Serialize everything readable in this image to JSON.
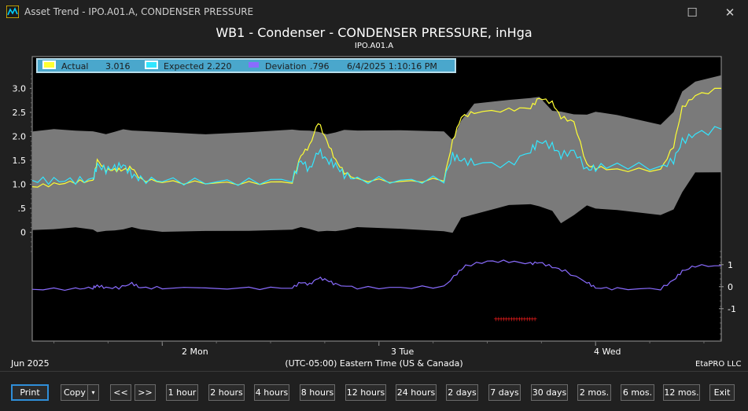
{
  "window": {
    "title": "Asset Trend - IPO.A01.A, CONDENSER PRESSURE",
    "maximize_glyph": "☐",
    "close_glyph": "✕"
  },
  "chart": {
    "title": "WB1 - Condenser - CONDENSER PRESSURE, inHga",
    "subtitle": "IPO.A01.A"
  },
  "legend": {
    "actual_label": "Actual",
    "actual_value": "3.016",
    "expected_label": "Expected",
    "expected_value": "2.220",
    "deviation_label": "Deviation",
    "deviation_value": ".796",
    "timestamp": "6/4/2025 1:10:16 PM"
  },
  "xaxis": {
    "month": "Jun 2025",
    "timezone": "(UTC-05:00) Eastern Time (US & Canada)",
    "brand": "EtaPRO LLC",
    "ticks": [
      "2 Mon",
      "3 Tue",
      "4 Wed"
    ]
  },
  "colors": {
    "actual": "#ffff33",
    "expected": "#33e6ff",
    "deviation": "#8a6cff",
    "band": "#7a7a7a",
    "alarm": "#ff1e1e"
  },
  "chart_data": {
    "type": "line",
    "x_unit": "days since 6/1/2025 00:00 (Jun 2025)",
    "x_range": [
      1.4,
      4.58
    ],
    "upper_panel": {
      "ylabel": "",
      "ylim": [
        -0.4,
        3.4
      ],
      "yticks": [
        "3.0",
        "2.5",
        "2.0",
        "1.5",
        "1.0",
        ".5",
        "0"
      ],
      "series": [
        {
          "name": "Actual",
          "x": [
            1.4,
            1.5,
            1.6,
            1.68,
            1.7,
            1.74,
            1.78,
            1.82,
            1.86,
            1.9,
            2.0,
            2.2,
            2.4,
            2.6,
            2.64,
            2.68,
            2.72,
            2.76,
            2.8,
            2.84,
            2.9,
            3.1,
            3.3,
            3.34,
            3.38,
            3.44,
            3.6,
            3.7,
            3.74,
            3.8,
            3.84,
            3.9,
            3.96,
            4.0,
            4.1,
            4.3,
            4.36,
            4.4,
            4.46,
            4.58
          ],
          "values": [
            0.95,
            1.0,
            1.05,
            1.07,
            1.5,
            1.3,
            1.3,
            1.3,
            1.35,
            1.1,
            1.05,
            1.03,
            1.02,
            1.05,
            1.6,
            1.8,
            2.3,
            1.9,
            1.5,
            1.25,
            1.1,
            1.05,
            1.1,
            1.9,
            2.4,
            2.5,
            2.55,
            2.6,
            2.8,
            2.7,
            2.4,
            2.3,
            1.4,
            1.35,
            1.3,
            1.3,
            1.8,
            2.6,
            2.85,
            3.0
          ]
        },
        {
          "name": "Expected",
          "x": [
            1.4,
            1.5,
            1.6,
            1.68,
            1.7,
            1.74,
            1.78,
            1.82,
            1.86,
            1.9,
            2.0,
            2.2,
            2.4,
            2.6,
            2.64,
            2.68,
            2.72,
            2.76,
            2.8,
            2.84,
            2.9,
            3.1,
            3.3,
            3.34,
            3.38,
            3.44,
            3.6,
            3.7,
            3.74,
            3.8,
            3.84,
            3.9,
            3.96,
            4.0,
            4.1,
            4.3,
            4.36,
            4.4,
            4.46,
            4.58
          ],
          "values": [
            1.08,
            1.08,
            1.08,
            1.1,
            1.4,
            1.3,
            1.35,
            1.4,
            1.2,
            1.1,
            1.08,
            1.05,
            1.05,
            1.1,
            1.5,
            1.3,
            1.7,
            1.5,
            1.4,
            1.2,
            1.1,
            1.07,
            1.1,
            1.6,
            1.5,
            1.45,
            1.4,
            1.7,
            1.9,
            1.8,
            1.6,
            1.7,
            1.3,
            1.35,
            1.4,
            1.35,
            1.5,
            1.9,
            2.05,
            2.15
          ]
        }
      ],
      "band_label": "Expected band",
      "band_low": [
        0.05,
        0.05,
        0.05,
        0.05,
        0.05,
        0.05,
        0.05,
        0.05,
        0.05,
        0.05,
        0.05,
        0.05,
        0.05,
        0.05,
        0.05,
        0.05,
        0.05,
        0.05,
        0.05,
        0.05,
        0.05,
        0.05,
        0.05,
        0.05,
        0.4,
        0.4,
        0.4,
        0.5,
        0.6,
        0.5,
        0.3,
        0.4,
        0.4,
        0.4,
        0.5,
        0.4,
        0.6,
        0.9,
        1.1,
        1.15
      ],
      "band_high": [
        2.1,
        2.1,
        2.1,
        2.1,
        2.1,
        2.1,
        2.1,
        2.1,
        2.1,
        2.1,
        2.1,
        2.1,
        2.1,
        2.1,
        2.1,
        2.1,
        2.1,
        2.1,
        2.1,
        2.1,
        2.1,
        2.1,
        2.1,
        2.1,
        2.4,
        2.6,
        2.7,
        2.7,
        2.8,
        2.7,
        2.6,
        2.4,
        2.4,
        2.4,
        2.4,
        2.4,
        2.6,
        2.9,
        3.1,
        3.15
      ]
    },
    "lower_panel": {
      "ylim": [
        -2.4,
        1.6
      ],
      "yticks": [
        "1",
        "0",
        "-1"
      ],
      "series": [
        {
          "name": "Deviation",
          "x": [
            1.4,
            1.6,
            1.68,
            1.7,
            1.74,
            1.8,
            1.86,
            1.9,
            2.0,
            2.4,
            2.6,
            2.64,
            2.68,
            2.72,
            2.76,
            2.8,
            2.9,
            3.1,
            3.3,
            3.36,
            3.4,
            3.5,
            3.6,
            3.7,
            3.74,
            3.8,
            3.86,
            3.96,
            4.0,
            4.1,
            4.3,
            4.36,
            4.4,
            4.46,
            4.58
          ],
          "values": [
            -0.12,
            -0.1,
            -0.05,
            0.05,
            -0.05,
            -0.05,
            0.15,
            -0.05,
            -0.05,
            -0.08,
            -0.05,
            0.2,
            0.1,
            0.4,
            0.3,
            0.1,
            -0.05,
            -0.05,
            0.0,
            0.6,
            0.95,
            1.15,
            1.15,
            1.05,
            1.1,
            0.9,
            0.7,
            0.2,
            -0.05,
            -0.1,
            -0.1,
            0.3,
            0.7,
            0.95,
            0.95
          ]
        }
      ],
      "alarm_marks": {
        "label": "alarm",
        "x_start": 3.54,
        "x_end": 3.72,
        "y": -1.45
      }
    }
  },
  "toolbar": {
    "buttons": [
      {
        "id": "print",
        "label": "Print"
      },
      {
        "id": "copy",
        "label": "Copy"
      },
      {
        "id": "back",
        "label": "<<"
      },
      {
        "id": "forward",
        "label": ">>"
      },
      {
        "id": "1h",
        "label": "1 hour"
      },
      {
        "id": "2h",
        "label": "2 hours"
      },
      {
        "id": "4h",
        "label": "4 hours"
      },
      {
        "id": "8h",
        "label": "8 hours"
      },
      {
        "id": "12h",
        "label": "12 hours"
      },
      {
        "id": "24h",
        "label": "24 hours"
      },
      {
        "id": "2d",
        "label": "2 days"
      },
      {
        "id": "7d",
        "label": "7 days"
      },
      {
        "id": "30d",
        "label": "30 days"
      },
      {
        "id": "2mo",
        "label": "2 mos."
      },
      {
        "id": "6mo",
        "label": "6 mos."
      },
      {
        "id": "12mo",
        "label": "12 mos."
      },
      {
        "id": "exit",
        "label": "Exit"
      }
    ],
    "copy_dropdown_glyph": "▾"
  }
}
